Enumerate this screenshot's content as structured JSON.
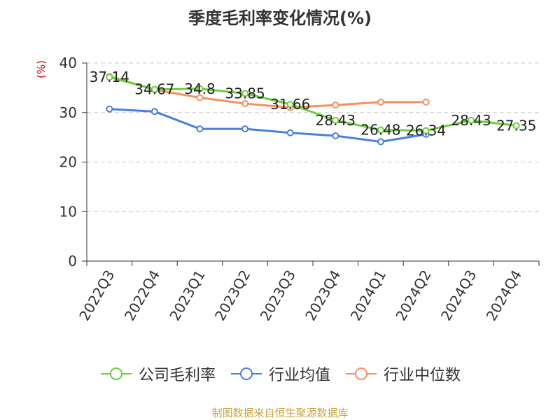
{
  "chart_data": {
    "type": "line",
    "title": "季度毛利率变化情况(%)",
    "ylabel": "(%)",
    "xlabel": "",
    "categories": [
      "2022Q3",
      "2022Q4",
      "2023Q1",
      "2023Q2",
      "2023Q3",
      "2023Q4",
      "2024Q1",
      "2024Q2",
      "2024Q3",
      "2024Q4"
    ],
    "yticks": [
      0,
      10,
      20,
      30,
      40
    ],
    "ylim": [
      0,
      40
    ],
    "grid": true,
    "legend_position": "bottom",
    "series": [
      {
        "name": "公司毛利率",
        "color": "#6ccf3b",
        "values": [
          37.14,
          34.67,
          34.8,
          33.85,
          31.66,
          28.43,
          26.48,
          26.34,
          28.43,
          27.35
        ],
        "labels": [
          "37.14",
          "34.67",
          "34.8",
          "33.85",
          "31.66",
          "28.43",
          "26.48",
          "26.34",
          "28.43",
          "27.35"
        ]
      },
      {
        "name": "行业均值",
        "color": "#4a7fdd",
        "values": [
          30.7,
          30.2,
          26.7,
          26.7,
          25.9,
          25.3,
          24.1,
          25.6,
          null,
          null
        ]
      },
      {
        "name": "行业中位数",
        "color": "#f59160",
        "values": [
          37.3,
          34.6,
          33.0,
          31.8,
          31.0,
          31.5,
          32.1,
          32.1,
          null,
          null
        ]
      }
    ]
  },
  "source": {
    "text": "制图数据来自恒生聚源数据库",
    "color": "#c8a640"
  }
}
